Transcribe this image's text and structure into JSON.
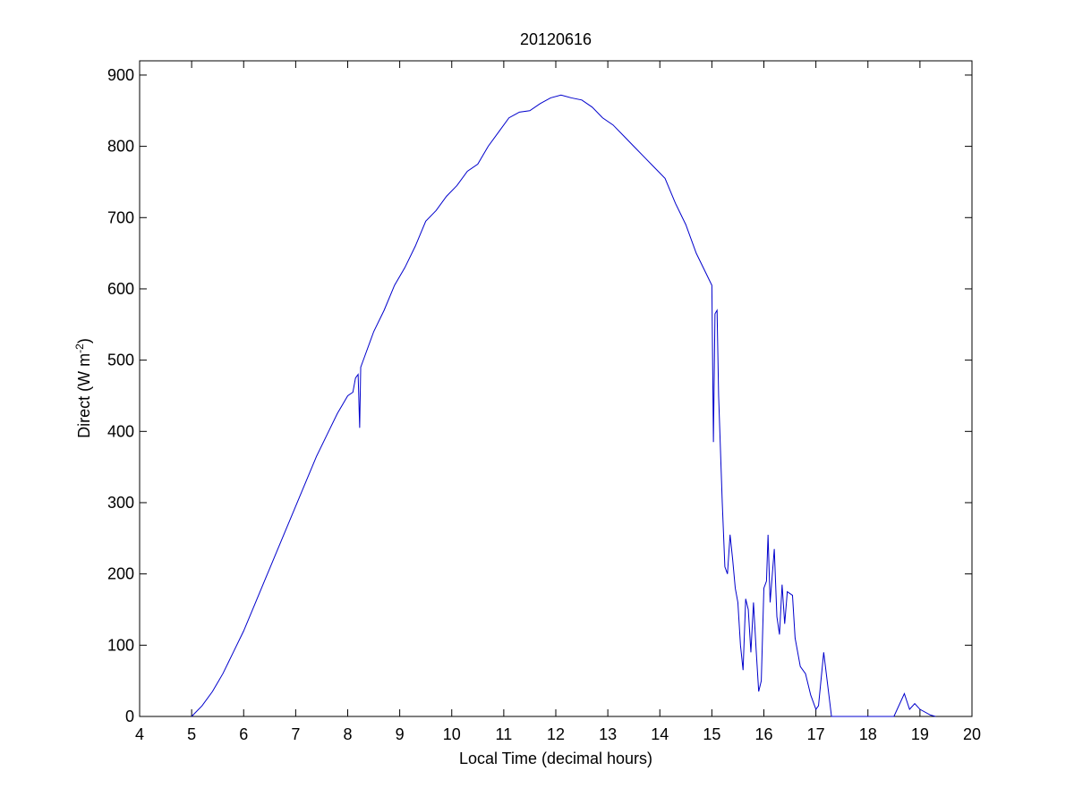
{
  "chart_data": {
    "type": "line",
    "title": "20120616",
    "xlabel": "Local Time (decimal hours)",
    "ylabel": {
      "main": "Direct (W m",
      "superscript": "-2",
      "end": ")"
    },
    "xlim": [
      4,
      20
    ],
    "xticks": [
      4,
      5,
      6,
      7,
      8,
      9,
      10,
      11,
      12,
      13,
      14,
      15,
      16,
      17,
      18,
      19,
      20
    ],
    "ylim": [
      0,
      920
    ],
    "yticks": [
      0,
      100,
      200,
      300,
      400,
      500,
      600,
      700,
      800,
      900
    ],
    "series": [
      {
        "color": "#0000cc",
        "x": [
          5.0,
          5.2,
          5.4,
          5.6,
          5.8,
          6.0,
          6.2,
          6.4,
          6.6,
          6.8,
          7.0,
          7.2,
          7.4,
          7.6,
          7.8,
          8.0,
          8.1,
          8.15,
          8.2,
          8.23,
          8.25,
          8.3,
          8.5,
          8.7,
          8.9,
          9.1,
          9.3,
          9.5,
          9.7,
          9.9,
          10.1,
          10.3,
          10.5,
          10.7,
          10.9,
          11.1,
          11.3,
          11.5,
          11.7,
          11.9,
          12.1,
          12.3,
          12.5,
          12.7,
          12.9,
          13.1,
          13.3,
          13.5,
          13.7,
          13.9,
          14.1,
          14.3,
          14.5,
          14.7,
          14.9,
          15.0,
          15.03,
          15.06,
          15.1,
          15.13,
          15.2,
          15.25,
          15.3,
          15.35,
          15.4,
          15.45,
          15.5,
          15.55,
          15.6,
          15.65,
          15.7,
          15.75,
          15.8,
          15.85,
          15.9,
          15.95,
          16.0,
          16.05,
          16.08,
          16.12,
          16.2,
          16.25,
          16.3,
          16.35,
          16.4,
          16.45,
          16.55,
          16.6,
          16.7,
          16.8,
          16.9,
          17.0,
          17.05,
          17.15,
          17.2,
          17.3,
          18.5,
          18.7,
          18.8,
          18.9,
          19.0,
          19.2,
          19.3
        ],
        "values": [
          0,
          15,
          35,
          60,
          90,
          120,
          155,
          190,
          225,
          260,
          295,
          330,
          365,
          395,
          425,
          450,
          455,
          475,
          480,
          405,
          490,
          500,
          540,
          570,
          605,
          630,
          660,
          695,
          710,
          730,
          745,
          765,
          775,
          800,
          820,
          840,
          848,
          850,
          860,
          868,
          872,
          868,
          865,
          855,
          840,
          830,
          815,
          800,
          785,
          770,
          755,
          720,
          690,
          650,
          620,
          605,
          385,
          565,
          570,
          450,
          300,
          210,
          200,
          255,
          220,
          180,
          160,
          100,
          65,
          165,
          150,
          90,
          160,
          95,
          35,
          50,
          180,
          190,
          255,
          160,
          235,
          140,
          115,
          185,
          130,
          175,
          170,
          110,
          70,
          60,
          30,
          10,
          15,
          90,
          60,
          0,
          0,
          32,
          10,
          18,
          10,
          2,
          0
        ]
      }
    ]
  }
}
